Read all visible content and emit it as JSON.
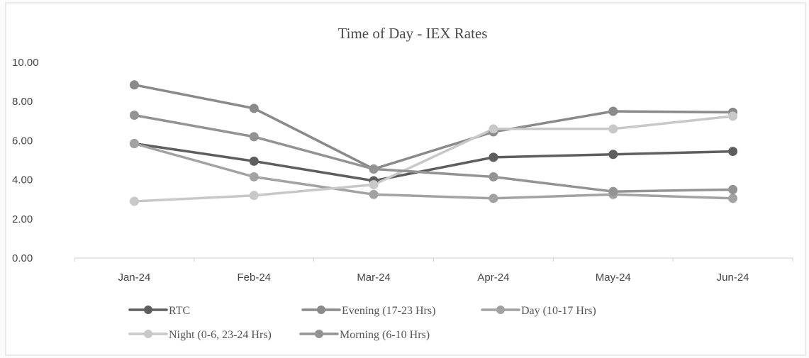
{
  "chart_data": {
    "type": "line",
    "title": "Time of Day - IEX Rates",
    "xlabel": "",
    "ylabel": "",
    "categories": [
      "Jan-24",
      "Feb-24",
      "Mar-24",
      "Apr-24",
      "May-24",
      "Jun-24"
    ],
    "yticks": [
      "0.00",
      "2.00",
      "4.00",
      "6.00",
      "8.00",
      "10.00"
    ],
    "ylim": [
      0,
      10
    ],
    "grid": false,
    "legend_position": "bottom",
    "series": [
      {
        "name": "RTC",
        "color": "#5e5e5e",
        "values": [
          5.85,
          4.95,
          3.95,
          5.15,
          5.3,
          5.45
        ]
      },
      {
        "name": "Evening (17-23 Hrs)",
        "color": "#8a8a8a",
        "values": [
          8.85,
          7.65,
          4.55,
          6.45,
          7.5,
          7.45
        ]
      },
      {
        "name": "Day (10-17 Hrs)",
        "color": "#a2a2a2",
        "values": [
          5.85,
          4.15,
          3.25,
          3.05,
          3.25,
          3.05
        ]
      },
      {
        "name": "Night (0-6, 23-24 Hrs)",
        "color": "#c8c8c8",
        "values": [
          2.9,
          3.2,
          3.75,
          6.6,
          6.6,
          7.25
        ]
      },
      {
        "name": "Morning (6-10 Hrs)",
        "color": "#939393",
        "values": [
          7.3,
          6.2,
          4.55,
          4.15,
          3.4,
          3.5
        ]
      }
    ]
  }
}
